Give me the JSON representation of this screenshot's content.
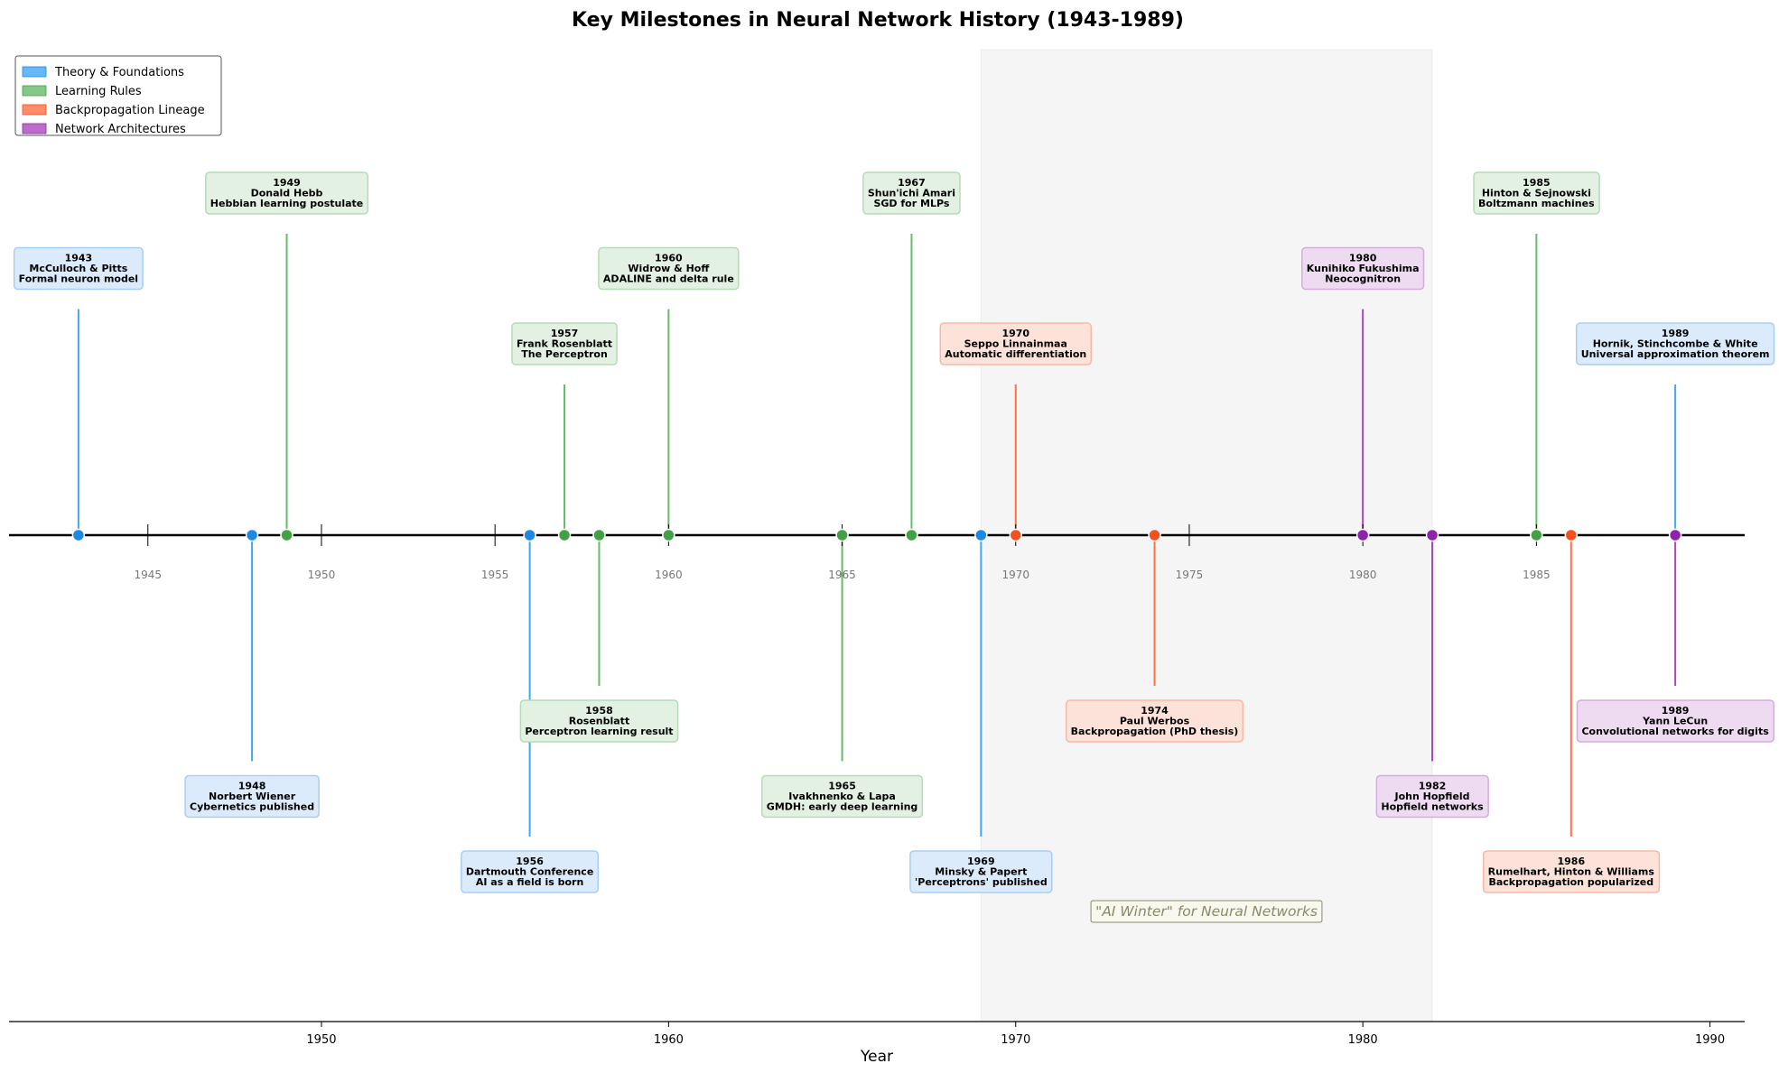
{
  "chart_data": {
    "type": "timeline",
    "title": "Key Milestones in Neural Network History (1943-1989)",
    "xlabel": "Year",
    "xlim": [
      1941,
      1991
    ],
    "x_ticks": [
      "1950",
      "1960",
      "1970",
      "1980",
      "1990"
    ],
    "inline_ticks": [
      "1945",
      "1950",
      "1955",
      "1960",
      "1965",
      "1970",
      "1975",
      "1980",
      "1985"
    ],
    "shaded_region": {
      "from": 1969,
      "to": 1982,
      "label": "\"AI Winter\" for Neural Networks"
    },
    "legend": {
      "location": "upper left",
      "entries": [
        {
          "key": "theory",
          "label": "Theory & Foundations"
        },
        {
          "key": "learning",
          "label": "Learning Rules"
        },
        {
          "key": "backprop",
          "label": "Backpropagation Lineage"
        },
        {
          "key": "arch",
          "label": "Network Architectures"
        }
      ]
    },
    "colors": {
      "theory": {
        "line": "#42a5f5",
        "dot": "#1e88e5",
        "box": "#dcebfb",
        "border": "#a7cff5"
      },
      "learning": {
        "line": "#66bb6a",
        "dot": "#43a047",
        "box": "#e2f1e2",
        "border": "#b5dcb6"
      },
      "backprop": {
        "line": "#ff7043",
        "dot": "#f4511e",
        "box": "#fde2da",
        "border": "#f7b9a6"
      },
      "arch": {
        "line": "#ab47bc",
        "dot": "#8e24aa",
        "box": "#eedaf1",
        "border": "#d4aedb"
      }
    },
    "events": [
      {
        "year": 1943,
        "category": "theory",
        "level": 3,
        "year_label": "1943",
        "person": "McCulloch & Pitts",
        "desc": "Formal neuron model"
      },
      {
        "year": 1948,
        "category": "theory",
        "level": -3,
        "year_label": "1948",
        "person": "Norbert Wiener",
        "desc": "Cybernetics published"
      },
      {
        "year": 1949,
        "category": "learning",
        "level": 4,
        "year_label": "1949",
        "person": "Donald Hebb",
        "desc": "Hebbian learning postulate"
      },
      {
        "year": 1956,
        "category": "theory",
        "level": -4,
        "year_label": "1956",
        "person": "Dartmouth Conference",
        "desc": "AI as a field is born"
      },
      {
        "year": 1957,
        "category": "learning",
        "level": 2,
        "year_label": "1957",
        "person": "Frank Rosenblatt",
        "desc": "The Perceptron"
      },
      {
        "year": 1958,
        "category": "learning",
        "level": -2,
        "year_label": "1958",
        "person": "Rosenblatt",
        "desc": "Perceptron learning result"
      },
      {
        "year": 1960,
        "category": "learning",
        "level": 3,
        "year_label": "1960",
        "person": "Widrow & Hoff",
        "desc": "ADALINE and delta rule"
      },
      {
        "year": 1965,
        "category": "learning",
        "level": -3,
        "year_label": "1965",
        "person": "Ivakhnenko & Lapa",
        "desc": "GMDH: early deep learning"
      },
      {
        "year": 1967,
        "category": "learning",
        "level": 4,
        "year_label": "1967",
        "person": "Shun'ichi Amari",
        "desc": "SGD for MLPs"
      },
      {
        "year": 1969,
        "category": "theory",
        "level": -4,
        "year_label": "1969",
        "person": "Minsky & Papert",
        "desc": "'Perceptrons' published"
      },
      {
        "year": 1970,
        "category": "backprop",
        "level": 2,
        "year_label": "1970",
        "person": "Seppo Linnainmaa",
        "desc": "Automatic differentiation"
      },
      {
        "year": 1974,
        "category": "backprop",
        "level": -2,
        "year_label": "1974",
        "person": "Paul Werbos",
        "desc": "Backpropagation (PhD thesis)"
      },
      {
        "year": 1980,
        "category": "arch",
        "level": 3,
        "year_label": "1980",
        "person": "Kunihiko Fukushima",
        "desc": "Neocognitron"
      },
      {
        "year": 1982,
        "category": "arch",
        "level": -3,
        "year_label": "1982",
        "person": "John Hopfield",
        "desc": "Hopfield networks"
      },
      {
        "year": 1985,
        "category": "learning",
        "level": 4,
        "year_label": "1985",
        "person": "Hinton & Sejnowski",
        "desc": "Boltzmann machines"
      },
      {
        "year": 1986,
        "category": "backprop",
        "level": -4,
        "year_label": "1986",
        "person": "Rumelhart, Hinton & Williams",
        "desc": "Backpropagation popularized"
      },
      {
        "year": 1989,
        "category": "theory",
        "level": 2,
        "year_label": "1989",
        "person": "Hornik, Stinchcombe & White",
        "desc": "Universal approximation theorem"
      },
      {
        "year": 1989,
        "category": "arch",
        "level": -2,
        "year_label": "1989",
        "person": "Yann LeCun",
        "desc": "Convolutional networks for digits"
      }
    ]
  }
}
